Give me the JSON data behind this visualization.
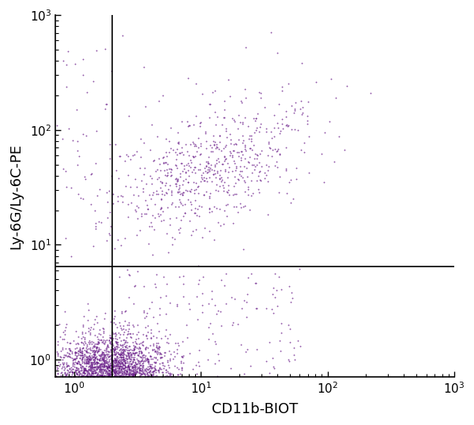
{
  "xlabel": "CD11b-BIOT",
  "ylabel": "Ly-6G/Ly-6C-PE",
  "dot_color": "#6B1F8A",
  "dot_alpha": 0.75,
  "dot_size": 1.8,
  "xlim_log": [
    -0.15,
    3.0
  ],
  "ylim_log": [
    -0.15,
    3.0
  ],
  "xline": 2.0,
  "yline": 6.5,
  "seed": 42,
  "background_color": "#ffffff",
  "tick_label_size": 11,
  "axis_label_size": 13
}
